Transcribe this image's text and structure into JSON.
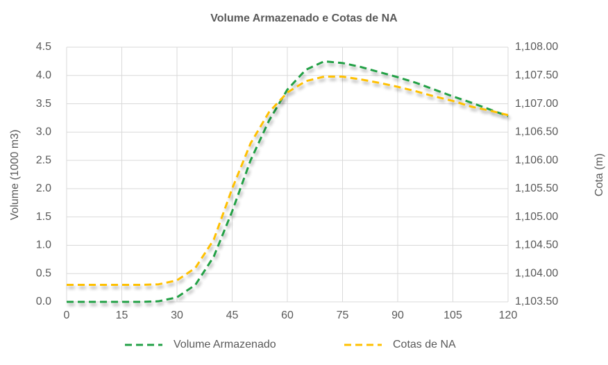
{
  "chart_data": {
    "type": "line",
    "title": "Volume Armazenado e Cotas de NA",
    "ylabel": "Volume (1000 m3)",
    "y2label": "Cota (m)",
    "x": [
      0,
      5,
      10,
      15,
      20,
      25,
      30,
      35,
      40,
      45,
      50,
      55,
      60,
      65,
      70,
      75,
      80,
      85,
      90,
      95,
      100,
      105,
      110,
      115,
      120
    ],
    "series": [
      {
        "name": "Volume Armazenado",
        "color": "#22a045",
        "axis": "y",
        "values": [
          0,
          0,
          0,
          0,
          0,
          0.01,
          0.08,
          0.3,
          0.8,
          1.6,
          2.5,
          3.2,
          3.75,
          4.1,
          4.25,
          4.22,
          4.15,
          4.06,
          3.97,
          3.87,
          3.75,
          3.63,
          3.52,
          3.4,
          3.28
        ]
      },
      {
        "name": "Cotas de NA",
        "color": "#ffc000",
        "axis": "y2",
        "values": [
          1103.8,
          1103.8,
          1103.8,
          1103.8,
          1103.8,
          1103.81,
          1103.88,
          1104.1,
          1104.6,
          1105.5,
          1106.3,
          1106.85,
          1107.2,
          1107.4,
          1107.48,
          1107.48,
          1107.43,
          1107.37,
          1107.3,
          1107.22,
          1107.13,
          1107.05,
          1106.95,
          1106.88,
          1106.8
        ]
      }
    ],
    "xlim": [
      0,
      120
    ],
    "xticks": [
      0,
      15,
      30,
      45,
      60,
      75,
      90,
      105,
      120
    ],
    "ylim": [
      0,
      4.5
    ],
    "yticks": [
      {
        "value": 0,
        "label": "0.0"
      },
      0.5,
      {
        "value": 1,
        "label": "1.0"
      },
      1.5,
      {
        "value": 2,
        "label": "2.0"
      },
      2.5,
      {
        "value": 3,
        "label": "3.0"
      },
      3.5,
      {
        "value": 4,
        "label": "4.0"
      },
      4.5
    ],
    "y2lim": [
      1103.5,
      1108
    ],
    "y2ticks": [
      {
        "value": 1103.5,
        "label": "1,103.50"
      },
      {
        "value": 1104,
        "label": "1,104.00"
      },
      {
        "value": 1104.5,
        "label": "1,104.50"
      },
      {
        "value": 1105,
        "label": "1,105.00"
      },
      {
        "value": 1105.5,
        "label": "1,105.50"
      },
      {
        "value": 1106,
        "label": "1,106.00"
      },
      {
        "value": 1106.5,
        "label": "1,106.50"
      },
      {
        "value": 1107,
        "label": "1,107.00"
      },
      {
        "value": 1107.5,
        "label": "1,107.50"
      },
      {
        "value": 1108,
        "label": "1,108.00"
      }
    ],
    "grid": true,
    "legend": "bottom"
  }
}
